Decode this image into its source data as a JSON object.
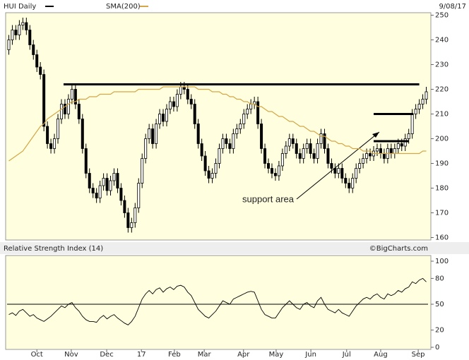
{
  "chart_data": [
    {
      "type": "candlestick",
      "title": "HUI Daily",
      "date": "9/08/17",
      "open": [
        236,
        240,
        244,
        242,
        246,
        247,
        244,
        238,
        234,
        229,
        226,
        205,
        198,
        196,
        200,
        208,
        214,
        210,
        216,
        220,
        214,
        208,
        196,
        186,
        180,
        178,
        176,
        181,
        184,
        179,
        183,
        186,
        180,
        175,
        170,
        164,
        166,
        172,
        182,
        192,
        200,
        204,
        198,
        206,
        210,
        207,
        212,
        215,
        213,
        218,
        221,
        220,
        216,
        214,
        206,
        198,
        193,
        187,
        184,
        186,
        190,
        196,
        200,
        198,
        196,
        202,
        204,
        206,
        210,
        212,
        214,
        215,
        206,
        196,
        190,
        188,
        186,
        185,
        189,
        194,
        197,
        200,
        198,
        194,
        192,
        196,
        198,
        194,
        192,
        198,
        202,
        196,
        190,
        188,
        186,
        188,
        184,
        182,
        180,
        184,
        188,
        190,
        192,
        194,
        193,
        195,
        196,
        194,
        192,
        196,
        194,
        196,
        198,
        197,
        200,
        202,
        210,
        212,
        214,
        216
      ],
      "high": [
        242,
        246,
        246,
        248,
        249,
        249,
        246,
        240,
        236,
        231,
        228,
        207,
        200,
        202,
        210,
        216,
        216,
        218,
        222,
        222,
        216,
        210,
        198,
        188,
        182,
        180,
        183,
        186,
        186,
        185,
        188,
        188,
        182,
        177,
        172,
        168,
        174,
        184,
        194,
        202,
        206,
        206,
        208,
        212,
        212,
        214,
        217,
        217,
        220,
        223,
        223,
        222,
        218,
        216,
        208,
        200,
        195,
        189,
        188,
        192,
        198,
        202,
        202,
        200,
        204,
        206,
        208,
        212,
        214,
        216,
        217,
        217,
        208,
        198,
        192,
        190,
        188,
        191,
        196,
        199,
        202,
        202,
        200,
        196,
        198,
        200,
        200,
        196,
        200,
        204,
        204,
        198,
        192,
        190,
        190,
        190,
        186,
        184,
        186,
        190,
        192,
        194,
        196,
        196,
        197,
        198,
        198,
        196,
        198,
        198,
        198,
        200,
        200,
        202,
        204,
        212,
        214,
        216,
        218,
        221
      ],
      "low": [
        234,
        238,
        240,
        240,
        244,
        242,
        236,
        232,
        227,
        224,
        203,
        196,
        194,
        194,
        198,
        206,
        208,
        208,
        214,
        212,
        206,
        194,
        184,
        178,
        176,
        174,
        174,
        179,
        177,
        177,
        181,
        178,
        173,
        168,
        162,
        162,
        164,
        170,
        180,
        190,
        198,
        196,
        196,
        204,
        205,
        205,
        210,
        211,
        211,
        216,
        218,
        214,
        212,
        204,
        196,
        191,
        185,
        182,
        182,
        184,
        188,
        194,
        196,
        194,
        194,
        200,
        202,
        204,
        208,
        210,
        212,
        204,
        194,
        188,
        186,
        184,
        183,
        183,
        187,
        192,
        195,
        196,
        192,
        190,
        190,
        194,
        192,
        190,
        190,
        196,
        194,
        188,
        186,
        184,
        184,
        182,
        180,
        178,
        178,
        182,
        186,
        188,
        190,
        191,
        191,
        193,
        192,
        190,
        190,
        192,
        192,
        194,
        195,
        195,
        198,
        200,
        208,
        210,
        212,
        214
      ],
      "close": [
        240,
        244,
        242,
        246,
        247,
        244,
        238,
        234,
        229,
        226,
        205,
        198,
        196,
        200,
        208,
        214,
        210,
        216,
        220,
        214,
        208,
        196,
        186,
        180,
        178,
        176,
        181,
        184,
        179,
        183,
        186,
        180,
        175,
        170,
        164,
        166,
        172,
        182,
        192,
        200,
        204,
        198,
        206,
        210,
        207,
        212,
        215,
        213,
        218,
        221,
        220,
        216,
        214,
        206,
        198,
        193,
        187,
        184,
        186,
        190,
        196,
        200,
        198,
        196,
        202,
        204,
        206,
        210,
        212,
        214,
        215,
        206,
        196,
        190,
        188,
        186,
        185,
        189,
        194,
        197,
        200,
        198,
        194,
        192,
        196,
        198,
        194,
        192,
        198,
        202,
        196,
        190,
        188,
        186,
        188,
        184,
        182,
        180,
        184,
        188,
        190,
        192,
        194,
        193,
        195,
        196,
        194,
        192,
        196,
        194,
        196,
        198,
        197,
        200,
        202,
        210,
        212,
        214,
        216,
        219
      ],
      "series": [
        {
          "name": "SMA(200)",
          "color": "#d4a646",
          "values": [
            191,
            192,
            193,
            194,
            195,
            197,
            199,
            201,
            203,
            205,
            206,
            208,
            209,
            210,
            211,
            212,
            213,
            214,
            215,
            215,
            216,
            216,
            216,
            217,
            217,
            217,
            218,
            218,
            218,
            218,
            219,
            219,
            219,
            219,
            219,
            219,
            219,
            220,
            220,
            220,
            220,
            220,
            220,
            220,
            221,
            221,
            221,
            221,
            221,
            221,
            221,
            221,
            221,
            221,
            220,
            220,
            220,
            220,
            219,
            219,
            219,
            218,
            218,
            217,
            217,
            216,
            216,
            215,
            215,
            214,
            214,
            213,
            213,
            212,
            211,
            211,
            210,
            209,
            209,
            208,
            207,
            207,
            206,
            205,
            205,
            204,
            203,
            203,
            202,
            201,
            201,
            200,
            199,
            199,
            198,
            198,
            197,
            197,
            196,
            196,
            196,
            195,
            195,
            195,
            194,
            194,
            194,
            194,
            194,
            194,
            194,
            194,
            194,
            194,
            194,
            194,
            194,
            194,
            195,
            195
          ]
        }
      ],
      "levels": [
        222,
        210,
        199
      ],
      "annotation": "support area",
      "xlim": [
        0,
        120
      ],
      "ylim": [
        159,
        251
      ],
      "yticks": [
        160,
        170,
        180,
        190,
        200,
        210,
        220,
        230,
        240,
        250
      ]
    },
    {
      "type": "line",
      "title": "Relative Strength Index (14)",
      "source": "©BigCharts.com",
      "values": [
        38,
        40,
        37,
        42,
        44,
        40,
        36,
        38,
        34,
        32,
        30,
        33,
        36,
        40,
        44,
        48,
        46,
        50,
        52,
        46,
        42,
        36,
        32,
        30,
        30,
        29,
        34,
        37,
        33,
        36,
        38,
        34,
        31,
        28,
        26,
        30,
        36,
        46,
        56,
        62,
        66,
        62,
        67,
        69,
        64,
        68,
        70,
        67,
        71,
        72,
        70,
        64,
        60,
        52,
        44,
        40,
        36,
        34,
        38,
        42,
        48,
        54,
        52,
        50,
        56,
        58,
        60,
        62,
        64,
        65,
        64,
        54,
        44,
        38,
        36,
        34,
        34,
        40,
        46,
        50,
        54,
        50,
        46,
        44,
        50,
        52,
        48,
        46,
        54,
        58,
        50,
        44,
        42,
        40,
        44,
        40,
        38,
        36,
        42,
        48,
        52,
        56,
        58,
        56,
        60,
        62,
        58,
        56,
        62,
        60,
        62,
        66,
        64,
        68,
        70,
        76,
        74,
        78,
        80,
        76
      ],
      "reference": 50,
      "xlim": [
        0,
        120
      ],
      "ylim": [
        0,
        100
      ],
      "yticks": [
        0,
        20,
        50,
        80,
        100
      ],
      "xticks": [
        {
          "value": 8.5,
          "label": "Oct"
        },
        {
          "value": 18.3,
          "label": "Nov"
        },
        {
          "value": 28.4,
          "label": "Dec"
        },
        {
          "value": 38.3,
          "label": "17"
        },
        {
          "value": 47.7,
          "label": "Feb"
        },
        {
          "value": 56.2,
          "label": "Mar"
        },
        {
          "value": 67.4,
          "label": "Apr"
        },
        {
          "value": 76.7,
          "label": "May"
        },
        {
          "value": 86.6,
          "label": "Jun"
        },
        {
          "value": 96.8,
          "label": "Jul"
        },
        {
          "value": 106.5,
          "label": "Aug"
        },
        {
          "value": 117.2,
          "label": "Sep"
        }
      ]
    }
  ]
}
